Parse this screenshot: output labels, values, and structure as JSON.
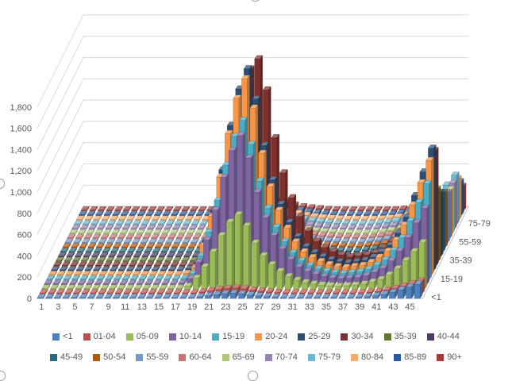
{
  "chart_data": {
    "type": "bar",
    "variant": "3d-column",
    "title": "",
    "x_axis": {
      "label": "",
      "categories": [
        1,
        2,
        3,
        4,
        5,
        6,
        7,
        8,
        9,
        10,
        11,
        12,
        13,
        14,
        15,
        16,
        17,
        18,
        19,
        20,
        21,
        22,
        23,
        24,
        25,
        26,
        27,
        28,
        29,
        30,
        31,
        32,
        33,
        34,
        35,
        36,
        37,
        38,
        39,
        40,
        41,
        42,
        43,
        44,
        45,
        46
      ],
      "tick_labels": [
        "1",
        "3",
        "5",
        "7",
        "9",
        "11",
        "13",
        "15",
        "17",
        "19",
        "21",
        "23",
        "25",
        "27",
        "29",
        "31",
        "33",
        "35",
        "37",
        "39",
        "41",
        "43",
        "45"
      ]
    },
    "y_axis": {
      "label": "",
      "min": 0,
      "max": 1800,
      "step": 200,
      "tick_labels": [
        "0",
        "200",
        "400",
        "600",
        "800",
        "1,000",
        "1,200",
        "1,400",
        "1,600",
        "1,800"
      ]
    },
    "depth_axis": {
      "tick_labels": [
        "<1",
        "15-19",
        "35-39",
        "55-59",
        "75-79"
      ],
      "tick_series_indexes": [
        0,
        4,
        8,
        12,
        16
      ]
    },
    "legend": {
      "position": "bottom",
      "rows": 2,
      "items_per_row": 10
    },
    "style": {
      "axis_text_color": "#595959",
      "gridline_color": "#d9d9d9",
      "floor_edge_color": "#bfbfbf",
      "background": "#ffffff",
      "handle_border": "#a6a6a6"
    },
    "series": [
      {
        "name": "<1",
        "color": "#4F81BD",
        "values": [
          0,
          0,
          0,
          0,
          0,
          0,
          0,
          0,
          0,
          0,
          0,
          0,
          0,
          0,
          0,
          0,
          1,
          2,
          8,
          15,
          25,
          36,
          45,
          50,
          43,
          31,
          23,
          17,
          12,
          9,
          6,
          5,
          4,
          3,
          2,
          2,
          4,
          7,
          11,
          17,
          25,
          38,
          57,
          81,
          107,
          134
        ]
      },
      {
        "name": "01-04",
        "color": "#C0504D",
        "values": [
          0,
          0,
          0,
          0,
          0,
          0,
          0,
          0,
          0,
          0,
          0,
          0,
          0,
          0,
          0,
          0,
          1,
          2,
          8,
          17,
          28,
          40,
          50,
          55,
          47,
          34,
          25,
          18,
          13,
          9,
          7,
          5,
          4,
          3,
          2,
          2,
          4,
          6,
          10,
          16,
          22,
          34,
          51,
          72,
          95,
          119
        ]
      },
      {
        "name": "05-09",
        "color": "#9BBB59",
        "values": [
          0,
          0,
          0,
          0,
          0,
          0,
          0,
          0,
          0,
          0,
          0,
          0,
          0,
          0,
          0,
          0,
          7,
          28,
          105,
          210,
          350,
          504,
          630,
          700,
          595,
          434,
          315,
          231,
          168,
          119,
          84,
          63,
          49,
          39,
          32,
          28,
          33,
          37,
          48,
          68,
          91,
          134,
          192,
          269,
          354,
          439
        ]
      },
      {
        "name": "10-14",
        "color": "#8064A2",
        "values": [
          0,
          0,
          0,
          0,
          0,
          0,
          0,
          0,
          0,
          0,
          0,
          0,
          0,
          0,
          0,
          0,
          14,
          56,
          210,
          420,
          700,
          1008,
          1260,
          1400,
          1190,
          868,
          630,
          462,
          336,
          238,
          168,
          126,
          98,
          77,
          63,
          56,
          61,
          67,
          85,
          116,
          154,
          223,
          316,
          442,
          580,
          718
        ]
      },
      {
        "name": "15-19",
        "color": "#4BACC6",
        "values": [
          0,
          0,
          0,
          0,
          0,
          0,
          0,
          0,
          0,
          0,
          0,
          0,
          0,
          0,
          0,
          0,
          15,
          60,
          225,
          450,
          750,
          1080,
          1350,
          1500,
          1275,
          930,
          675,
          495,
          360,
          255,
          180,
          135,
          105,
          83,
          68,
          60,
          69,
          77,
          101,
          141,
          189,
          277,
          396,
          555,
          730,
          905
        ]
      },
      {
        "name": "20-24",
        "color": "#F79646",
        "values": [
          0,
          0,
          0,
          0,
          0,
          0,
          0,
          0,
          0,
          0,
          0,
          0,
          0,
          0,
          0,
          0,
          19,
          74,
          278,
          555,
          925,
          1332,
          1665,
          1850,
          1573,
          1147,
          833,
          611,
          444,
          315,
          222,
          167,
          130,
          102,
          83,
          74,
          84,
          94,
          123,
          170,
          227,
          331,
          473,
          663,
          871,
          1080
        ]
      },
      {
        "name": "25-29",
        "color": "#2C4D75",
        "values": [
          0,
          0,
          0,
          0,
          0,
          0,
          0,
          0,
          0,
          0,
          0,
          0,
          0,
          0,
          0,
          0,
          19,
          76,
          285,
          570,
          950,
          1368,
          1710,
          1900,
          1615,
          1178,
          855,
          627,
          456,
          323,
          228,
          171,
          133,
          105,
          86,
          76,
          87,
          98,
          128,
          179,
          241,
          353,
          504,
          707,
          930,
          1153
        ]
      },
      {
        "name": "30-34",
        "color": "#7E302C",
        "values": [
          0,
          0,
          0,
          0,
          0,
          0,
          0,
          0,
          0,
          0,
          0,
          0,
          0,
          0,
          0,
          0,
          10,
          39,
          156,
          390,
          741,
          1170,
          1560,
          1853,
          1950,
          1658,
          1209,
          878,
          644,
          468,
          332,
          234,
          176,
          137,
          107,
          88,
          97,
          107,
          127,
          175,
          234,
          331,
          475,
          660,
          874,
          1087
        ]
      },
      {
        "name": "35-39",
        "color": "#5F7530",
        "values": [
          0,
          0,
          0,
          0,
          0,
          0,
          0,
          0,
          0,
          0,
          0,
          0,
          0,
          0,
          0,
          0,
          4,
          17,
          63,
          126,
          210,
          302,
          378,
          420,
          357,
          260,
          189,
          139,
          101,
          71,
          50,
          38,
          29,
          23,
          19,
          17,
          28,
          39,
          59,
          91,
          130,
          197,
          290,
          411,
          545,
          679
        ]
      },
      {
        "name": "40-44",
        "color": "#4D3B62",
        "values": [
          0,
          0,
          0,
          0,
          0,
          0,
          0,
          0,
          0,
          0,
          0,
          0,
          0,
          0,
          0,
          0,
          4,
          14,
          54,
          108,
          180,
          259,
          324,
          360,
          306,
          223,
          162,
          119,
          86,
          61,
          43,
          32,
          25,
          20,
          16,
          14,
          25,
          34,
          52,
          81,
          115,
          175,
          258,
          366,
          486,
          605
        ]
      },
      {
        "name": "45-49",
        "color": "#276A7C",
        "values": [
          0,
          0,
          0,
          0,
          0,
          0,
          0,
          0,
          0,
          0,
          0,
          0,
          0,
          0,
          0,
          0,
          3,
          13,
          50,
          99,
          165,
          238,
          297,
          330,
          281,
          205,
          149,
          109,
          79,
          56,
          40,
          30,
          23,
          18,
          15,
          13,
          23,
          32,
          48,
          75,
          107,
          163,
          240,
          341,
          452,
          563
        ]
      },
      {
        "name": "50-54",
        "color": "#B65708",
        "values": [
          0,
          0,
          0,
          0,
          0,
          0,
          0,
          0,
          0,
          0,
          0,
          0,
          0,
          0,
          0,
          0,
          3,
          12,
          45,
          90,
          150,
          216,
          270,
          300,
          255,
          186,
          135,
          99,
          72,
          51,
          36,
          27,
          21,
          17,
          14,
          12,
          21,
          29,
          44,
          69,
          99,
          151,
          222,
          315,
          418,
          521
        ]
      },
      {
        "name": "55-59",
        "color": "#729ACA",
        "values": [
          0,
          0,
          0,
          0,
          0,
          0,
          0,
          0,
          0,
          0,
          0,
          0,
          0,
          0,
          0,
          0,
          3,
          11,
          41,
          81,
          135,
          194,
          243,
          270,
          230,
          167,
          122,
          89,
          65,
          46,
          32,
          24,
          19,
          15,
          12,
          11,
          18,
          26,
          40,
          63,
          90,
          136,
          202,
          287,
          380,
          474
        ]
      },
      {
        "name": "60-64",
        "color": "#CD7371",
        "values": [
          0,
          0,
          0,
          0,
          0,
          0,
          0,
          0,
          0,
          0,
          0,
          0,
          0,
          0,
          0,
          0,
          2,
          9,
          33,
          66,
          110,
          158,
          198,
          220,
          187,
          136,
          99,
          73,
          53,
          37,
          26,
          20,
          15,
          12,
          10,
          9,
          16,
          24,
          36,
          57,
          83,
          126,
          185,
          263,
          349,
          435
        ]
      },
      {
        "name": "65-69",
        "color": "#AFC97A",
        "values": [
          0,
          0,
          0,
          0,
          0,
          0,
          0,
          0,
          0,
          0,
          0,
          0,
          0,
          0,
          0,
          0,
          2,
          8,
          29,
          57,
          95,
          137,
          171,
          190,
          162,
          118,
          86,
          63,
          46,
          32,
          23,
          17,
          13,
          10,
          9,
          8,
          15,
          22,
          34,
          55,
          79,
          120,
          178,
          253,
          335,
          418
        ]
      },
      {
        "name": "70-74",
        "color": "#9983B5",
        "values": [
          0,
          0,
          0,
          0,
          0,
          0,
          0,
          0,
          0,
          0,
          0,
          0,
          0,
          0,
          0,
          0,
          2,
          7,
          26,
          51,
          85,
          122,
          153,
          170,
          145,
          105,
          77,
          56,
          41,
          29,
          20,
          15,
          12,
          9,
          8,
          7,
          14,
          22,
          34,
          55,
          81,
          124,
          183,
          261,
          346,
          432
        ]
      },
      {
        "name": "75-79",
        "color": "#6FB7D0",
        "values": [
          0,
          0,
          0,
          0,
          0,
          0,
          0,
          0,
          0,
          0,
          0,
          0,
          0,
          0,
          0,
          0,
          2,
          6,
          24,
          48,
          80,
          115,
          144,
          160,
          136,
          99,
          72,
          53,
          38,
          27,
          19,
          14,
          11,
          9,
          7,
          6,
          15,
          23,
          37,
          60,
          87,
          133,
          197,
          281,
          374,
          466
        ]
      },
      {
        "name": "80-84",
        "color": "#F9AB6B",
        "values": [
          0,
          0,
          0,
          0,
          0,
          0,
          0,
          0,
          0,
          0,
          0,
          0,
          0,
          0,
          0,
          0,
          1,
          6,
          21,
          42,
          70,
          101,
          126,
          140,
          119,
          87,
          63,
          46,
          34,
          24,
          17,
          13,
          10,
          8,
          6,
          6,
          13,
          19,
          31,
          50,
          72,
          111,
          166,
          235,
          312,
          390
        ]
      },
      {
        "name": "85-89",
        "color": "#2D5A9B",
        "values": [
          0,
          0,
          0,
          0,
          0,
          0,
          0,
          0,
          0,
          0,
          0,
          0,
          0,
          0,
          0,
          0,
          1,
          4,
          17,
          33,
          55,
          79,
          99,
          110,
          94,
          68,
          50,
          36,
          26,
          19,
          13,
          10,
          8,
          6,
          5,
          4,
          10,
          15,
          25,
          40,
          59,
          91,
          134,
          192,
          255,
          318
        ]
      },
      {
        "name": "90+",
        "color": "#A33C39",
        "values": [
          0,
          0,
          0,
          0,
          0,
          0,
          0,
          0,
          0,
          0,
          0,
          0,
          0,
          0,
          0,
          0,
          1,
          4,
          14,
          27,
          45,
          65,
          81,
          90,
          77,
          56,
          41,
          30,
          22,
          15,
          11,
          8,
          6,
          5,
          4,
          4,
          8,
          12,
          19,
          30,
          44,
          66,
          99,
          140,
          185,
          231
        ]
      }
    ]
  }
}
